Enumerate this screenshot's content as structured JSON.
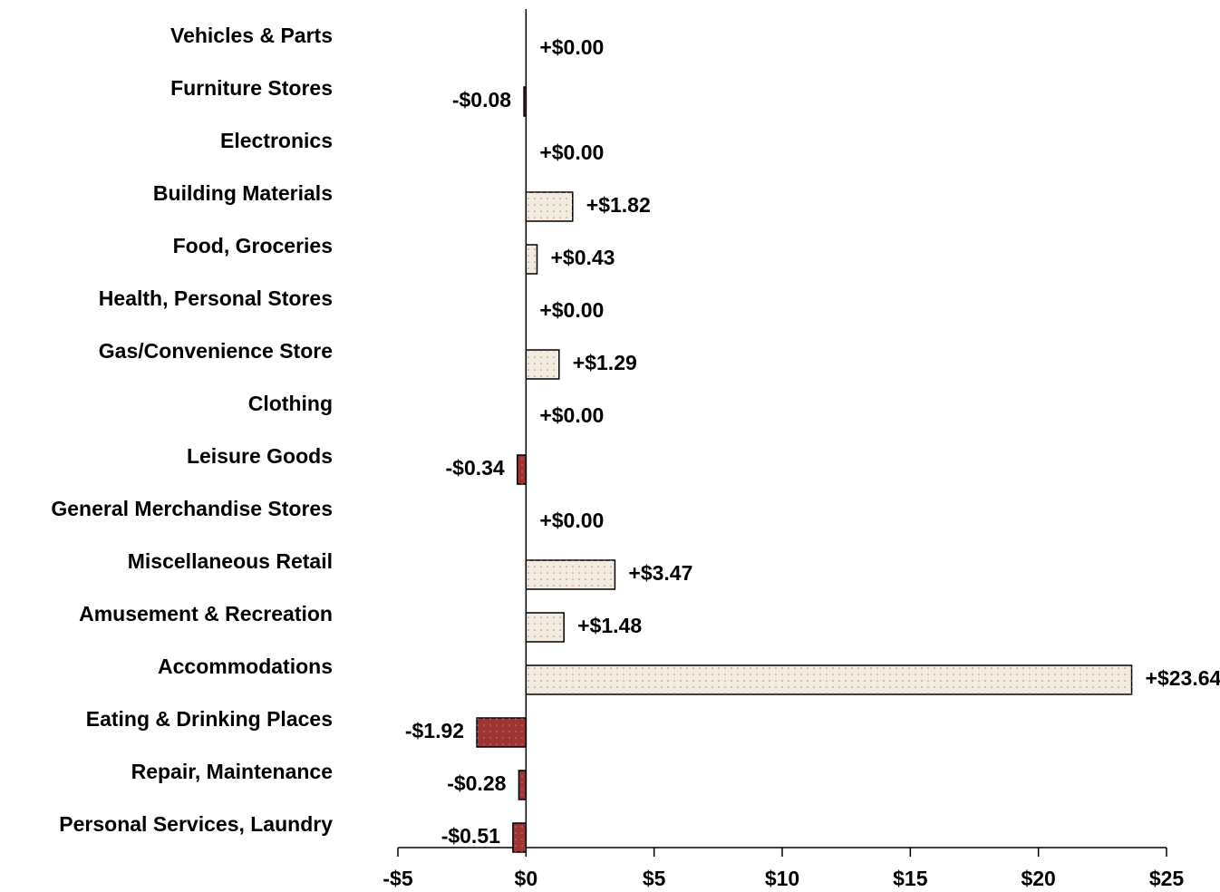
{
  "chart_data": {
    "type": "hbar",
    "categories": [
      "Vehicles & Parts",
      "Furniture Stores",
      "Electronics",
      "Building Materials",
      "Food, Groceries",
      "Health, Personal Stores",
      "Gas/Convenience Store",
      "Clothing",
      "Leisure Goods",
      "General Merchandise Stores",
      "Miscellaneous Retail",
      "Amusement & Recreation",
      "Accommodations",
      "Eating & Drinking Places",
      "Repair, Maintenance",
      "Personal Services, Laundry"
    ],
    "values": [
      0,
      -0.08,
      0,
      1.82,
      0.43,
      0,
      1.29,
      0,
      -0.34,
      0,
      3.47,
      1.48,
      23.64,
      -1.92,
      -0.28,
      -0.51
    ],
    "value_labels": [
      "+$0.00",
      "-$0.08",
      "+$0.00",
      "+$1.82",
      "+$0.43",
      "+$0.00",
      "+$1.29",
      "+$0.00",
      "-$0.34",
      "+$0.00",
      "+$3.47",
      "+$1.48",
      "+$23.64",
      "-$1.92",
      "-$0.28",
      "-$0.51"
    ],
    "colors": [
      "#f2ebe0",
      "#9e3434",
      "#f2ebe0",
      "#f2ebe0",
      "#f2ebe0",
      "#f2ebe0",
      "#f2ebe0",
      "#f2ebe0",
      "#9e3434",
      "#f2ebe0",
      "#f2ebe0",
      "#f2ebe0",
      "#f2ebe0",
      "#9e3434",
      "#9e3434",
      "#9e3434"
    ],
    "xlim": [
      -5,
      25
    ],
    "xticks": [
      {
        "value": -5,
        "label": "-$5"
      },
      {
        "value": 0,
        "label": "$0"
      },
      {
        "value": 5,
        "label": "$5"
      },
      {
        "value": 10,
        "label": "$10"
      },
      {
        "value": 15,
        "label": "$15"
      },
      {
        "value": 20,
        "label": "$20"
      },
      {
        "value": 25,
        "label": "$25"
      }
    ]
  }
}
